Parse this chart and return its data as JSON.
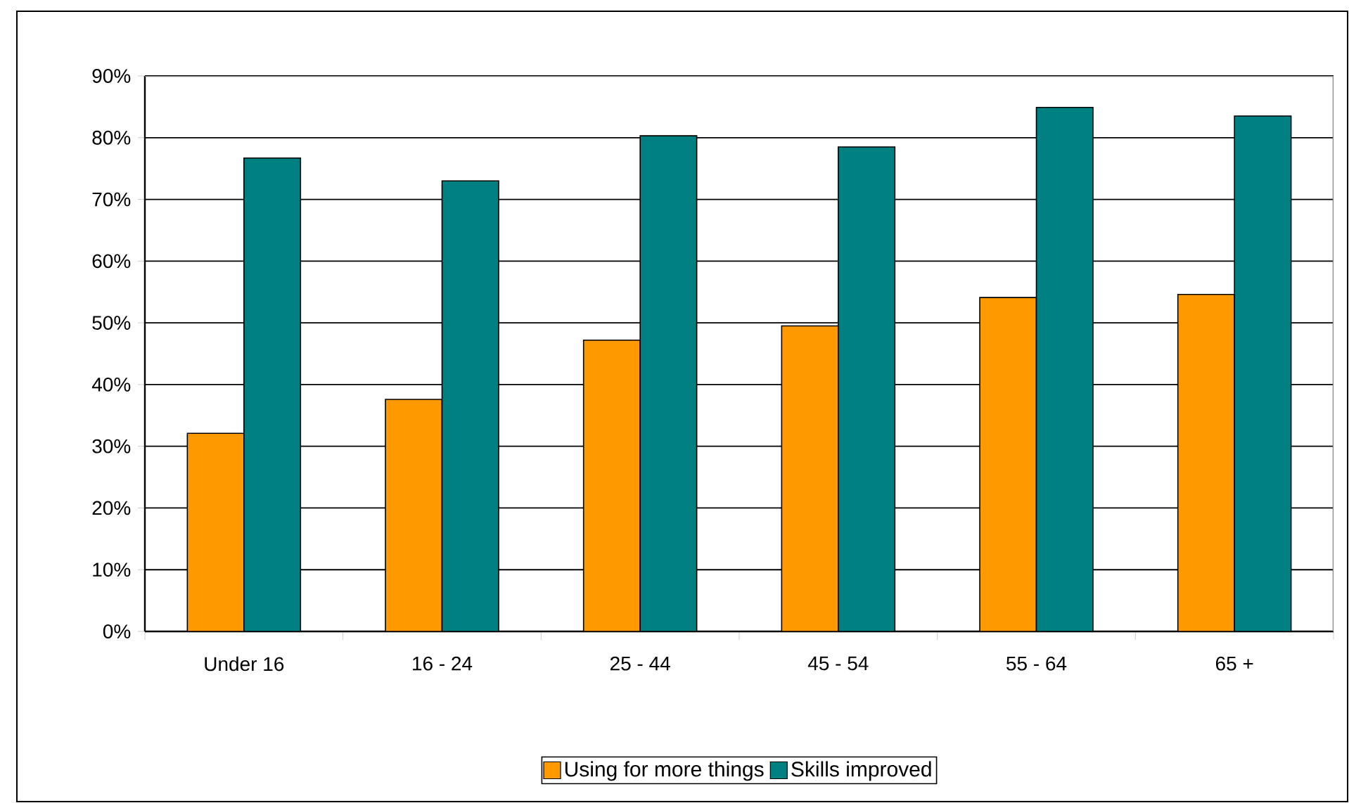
{
  "chart_data": {
    "type": "bar",
    "categories": [
      "Under 16",
      "16 - 24",
      "25 - 44",
      "45 - 54",
      "55 - 64",
      "65 +"
    ],
    "series": [
      {
        "name": "Using for more things",
        "color": "#ff9900",
        "values": [
          32.1,
          37.6,
          47.2,
          49.5,
          54.1,
          54.6
        ]
      },
      {
        "name": "Skills improved",
        "color": "#008080",
        "values": [
          76.7,
          73.0,
          80.3,
          78.5,
          84.9,
          83.5
        ]
      }
    ],
    "ylim": [
      0,
      90
    ],
    "yticks": [
      {
        "value": 0,
        "label": "0%"
      },
      {
        "value": 10,
        "label": "10%"
      },
      {
        "value": 20,
        "label": "20%"
      },
      {
        "value": 30,
        "label": "30%"
      },
      {
        "value": 40,
        "label": "40%"
      },
      {
        "value": 50,
        "label": "50%"
      },
      {
        "value": 60,
        "label": "60%"
      },
      {
        "value": 70,
        "label": "70%"
      },
      {
        "value": 80,
        "label": "80%"
      },
      {
        "value": 90,
        "label": "90%"
      }
    ],
    "grid": "y",
    "legend": "bottom"
  }
}
